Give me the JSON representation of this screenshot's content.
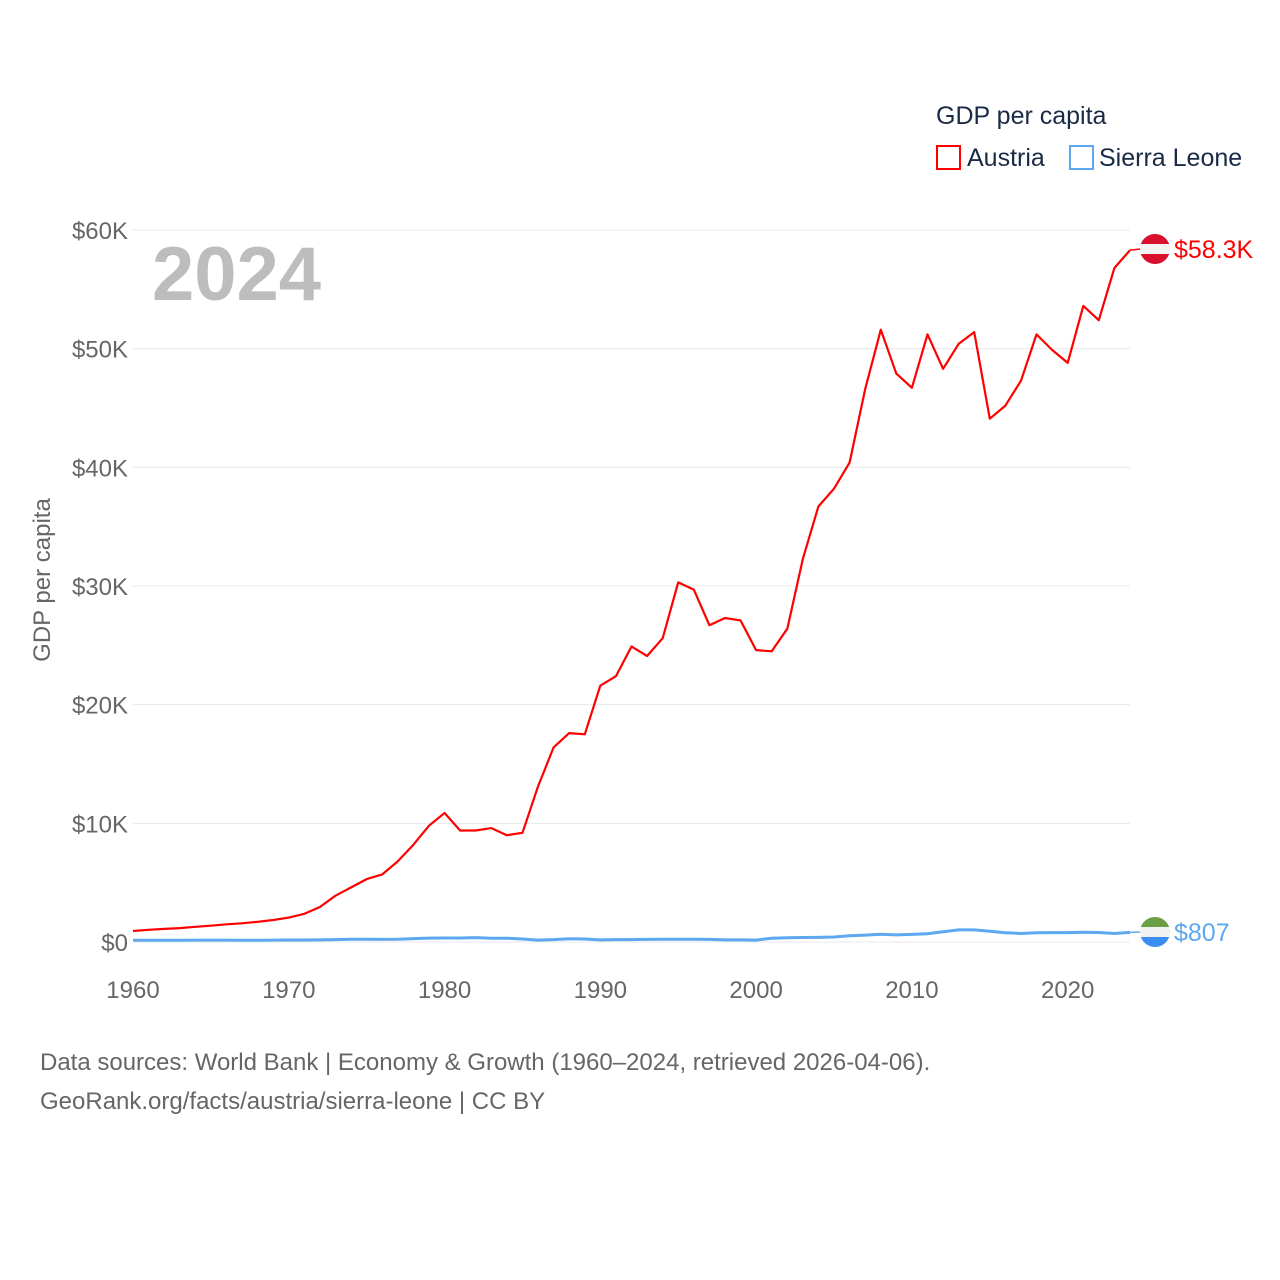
{
  "chart_data": {
    "type": "line",
    "title": "",
    "ylabel": "GDP per capita",
    "xlabel": "",
    "year_label": "2024",
    "xlim": [
      1960,
      2024
    ],
    "ylim": [
      0,
      60000
    ],
    "grid": true,
    "x_ticks": [
      1960,
      1970,
      1980,
      1990,
      2000,
      2010,
      2020
    ],
    "x_tick_labels": [
      "1960",
      "1970",
      "1980",
      "1990",
      "2000",
      "2010",
      "2020"
    ],
    "y_ticks": [
      0,
      10000,
      20000,
      30000,
      40000,
      50000,
      60000
    ],
    "y_tick_labels": [
      "$0",
      "$10K",
      "$20K",
      "$30K",
      "$40K",
      "$50K",
      "$60K"
    ],
    "legend": {
      "title": "GDP per capita",
      "placement": "top-right"
    },
    "x": [
      1960,
      1961,
      1962,
      1963,
      1964,
      1965,
      1966,
      1967,
      1968,
      1969,
      1970,
      1971,
      1972,
      1973,
      1974,
      1975,
      1976,
      1977,
      1978,
      1979,
      1980,
      1981,
      1982,
      1983,
      1984,
      1985,
      1986,
      1987,
      1988,
      1989,
      1990,
      1991,
      1992,
      1993,
      1994,
      1995,
      1996,
      1997,
      1998,
      1999,
      2000,
      2001,
      2002,
      2003,
      2004,
      2005,
      2006,
      2007,
      2008,
      2009,
      2010,
      2011,
      2012,
      2013,
      2014,
      2015,
      2016,
      2017,
      2018,
      2019,
      2020,
      2021,
      2022,
      2023,
      2024
    ],
    "series": [
      {
        "name": "Austria",
        "color": "#ff0000",
        "end_label": "$58.3K",
        "values": [
          930,
          1030,
          1100,
          1170,
          1280,
          1370,
          1490,
          1580,
          1700,
          1850,
          2060,
          2380,
          2950,
          3900,
          4600,
          5300,
          5700,
          6800,
          8200,
          9800,
          10870,
          9400,
          9400,
          9600,
          9000,
          9200,
          13100,
          16400,
          17600,
          17500,
          21600,
          22400,
          24900,
          24100,
          25600,
          30300,
          29700,
          26700,
          27300,
          27100,
          24600,
          24500,
          26400,
          32300,
          36700,
          38200,
          40400,
          46600,
          51600,
          47900,
          46700,
          51200,
          48300,
          50400,
          51400,
          44100,
          45200,
          47300,
          51200,
          49900,
          48800,
          53600,
          52400,
          56800,
          58300
        ]
      },
      {
        "name": "Sierra Leone",
        "color": "#5ea8ef",
        "end_label": "$807",
        "values": [
          150,
          150,
          155,
          155,
          160,
          160,
          160,
          155,
          150,
          160,
          170,
          170,
          175,
          200,
          230,
          230,
          220,
          240,
          290,
          330,
          340,
          340,
          370,
          310,
          320,
          250,
          160,
          200,
          280,
          250,
          180,
          200,
          200,
          220,
          240,
          240,
          240,
          220,
          180,
          180,
          160,
          320,
          350,
          380,
          390,
          420,
          520,
          580,
          650,
          600,
          640,
          700,
          860,
          1020,
          1020,
          900,
          780,
          720,
          780,
          790,
          790,
          830,
          800,
          720,
          807
        ]
      }
    ]
  },
  "footer": {
    "line1": "Data sources: World Bank | Economy & Growth (1960–2024, retrieved 2026-04-06).",
    "line2": "GeoRank.org/facts/austria/sierra-leone | CC BY"
  }
}
